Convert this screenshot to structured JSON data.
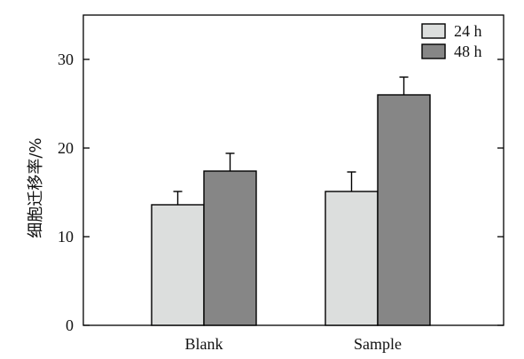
{
  "chart_data": {
    "type": "bar",
    "title": "",
    "xlabel": "",
    "ylabel": "细胞迁移率/%",
    "ylim": [
      0,
      35
    ],
    "yticks": [
      0,
      10,
      20,
      30
    ],
    "grid": false,
    "legend_position": "top-right",
    "categories": [
      "Blank",
      "Sample"
    ],
    "series": [
      {
        "name": "24 h",
        "color": "#dcdedd",
        "values": [
          13.6,
          15.1
        ],
        "errors": [
          1.5,
          2.2
        ]
      },
      {
        "name": "48 h",
        "color": "#868686",
        "values": [
          17.4,
          26.0
        ],
        "errors": [
          2.0,
          2.0
        ]
      }
    ]
  }
}
